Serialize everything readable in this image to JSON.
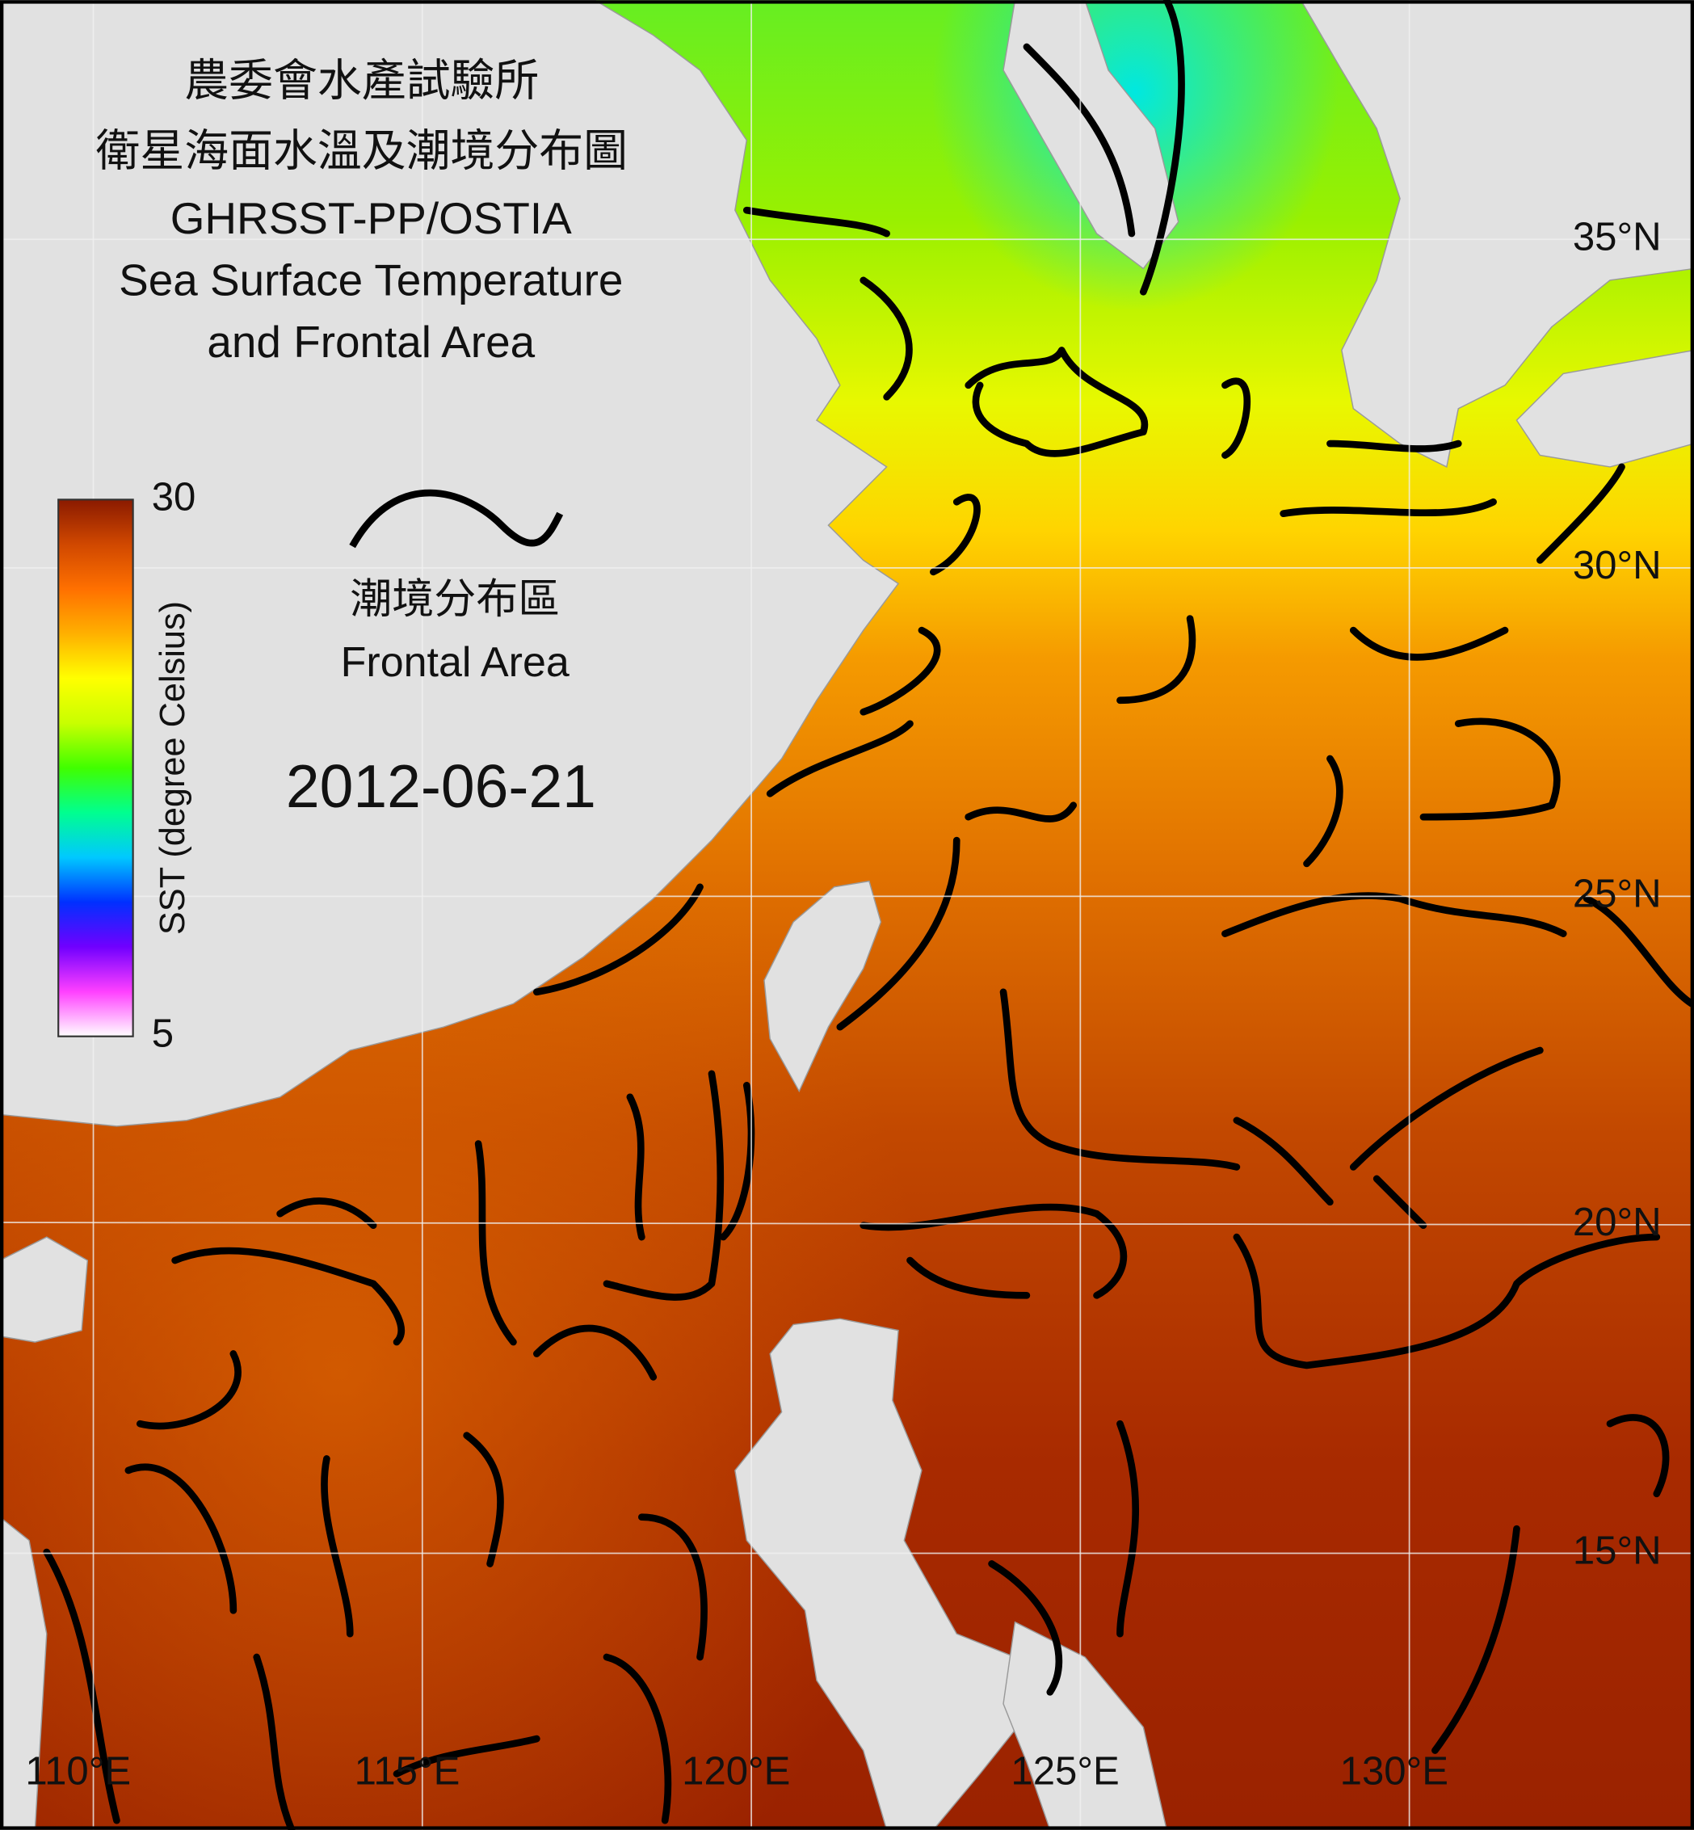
{
  "header": {
    "title_zh_1": "農委會水產試驗所",
    "title_zh_2": "衛星海面水溫及潮境分布圖",
    "title_en_1": "GHRSST-PP/OSTIA",
    "title_en_2": "Sea Surface Temperature",
    "title_en_3": "and Frontal Area"
  },
  "date": "2012-06-21",
  "legend": {
    "label_zh": "潮境分布區",
    "label_en": "Frontal Area"
  },
  "colorbar": {
    "label": "SST (degree Celsius)",
    "min": 5,
    "max": 30,
    "ticks": [
      5,
      30
    ],
    "colors": [
      "#ffffff",
      "#ff40ff",
      "#7000ff",
      "#0030ff",
      "#00c8ff",
      "#00ff90",
      "#40ff00",
      "#c8ff00",
      "#ffff00",
      "#ffb000",
      "#ff7000",
      "#d04800",
      "#8a1a00"
    ]
  },
  "latitudes": [
    {
      "value": 35,
      "label": "35°N"
    },
    {
      "value": 30,
      "label": "30°N"
    },
    {
      "value": 25,
      "label": "25°N"
    },
    {
      "value": 20,
      "label": "20°N"
    },
    {
      "value": 15,
      "label": "15°N"
    }
  ],
  "longitudes": [
    {
      "value": 110,
      "label": "110°E"
    },
    {
      "value": 115,
      "label": "115°E"
    },
    {
      "value": 120,
      "label": "120°E"
    },
    {
      "value": 125,
      "label": "125°E"
    },
    {
      "value": 130,
      "label": "130°E"
    }
  ]
}
